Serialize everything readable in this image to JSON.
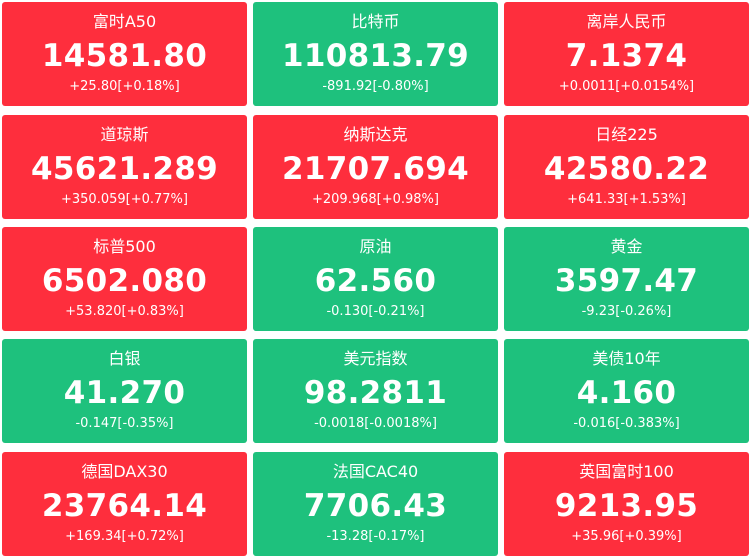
{
  "colors": {
    "up": "#fe2e3d",
    "down": "#1ec17d",
    "text": "#ffffff"
  },
  "quotes": [
    {
      "name": "富时A50",
      "value": "14581.80",
      "change": "+25.80[+0.18%]",
      "direction": "up"
    },
    {
      "name": "比特币",
      "value": "110813.79",
      "change": "-891.92[-0.80%]",
      "direction": "down"
    },
    {
      "name": "离岸人民币",
      "value": "7.1374",
      "change": "+0.0011[+0.0154%]",
      "direction": "up"
    },
    {
      "name": "道琼斯",
      "value": "45621.289",
      "change": "+350.059[+0.77%]",
      "direction": "up"
    },
    {
      "name": "纳斯达克",
      "value": "21707.694",
      "change": "+209.968[+0.98%]",
      "direction": "up"
    },
    {
      "name": "日经225",
      "value": "42580.22",
      "change": "+641.33[+1.53%]",
      "direction": "up"
    },
    {
      "name": "标普500",
      "value": "6502.080",
      "change": "+53.820[+0.83%]",
      "direction": "up"
    },
    {
      "name": "原油",
      "value": "62.560",
      "change": "-0.130[-0.21%]",
      "direction": "down"
    },
    {
      "name": "黄金",
      "value": "3597.47",
      "change": "-9.23[-0.26%]",
      "direction": "down"
    },
    {
      "name": "白银",
      "value": "41.270",
      "change": "-0.147[-0.35%]",
      "direction": "down"
    },
    {
      "name": "美元指数",
      "value": "98.2811",
      "change": "-0.0018[-0.0018%]",
      "direction": "down"
    },
    {
      "name": "美债10年",
      "value": "4.160",
      "change": "-0.016[-0.383%]",
      "direction": "down"
    },
    {
      "name": "德国DAX30",
      "value": "23764.14",
      "change": "+169.34[+0.72%]",
      "direction": "up"
    },
    {
      "name": "法国CAC40",
      "value": "7706.43",
      "change": "-13.28[-0.17%]",
      "direction": "down"
    },
    {
      "name": "英国富时100",
      "value": "9213.95",
      "change": "+35.96[+0.39%]",
      "direction": "up"
    }
  ]
}
